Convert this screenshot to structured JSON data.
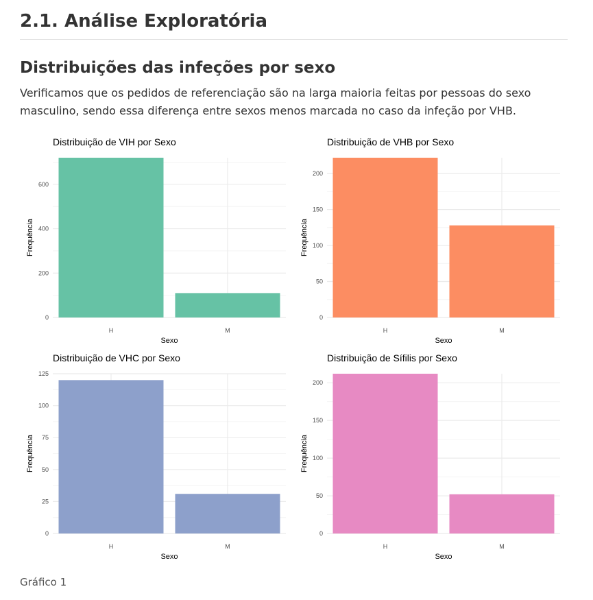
{
  "header": {
    "section_title": "2.1. Análise Exploratória",
    "subtitle": "Distribuições das infeções por sexo",
    "paragraph": "Verificamos que os pedidos de referenciação são na larga maioria feitas por pessoas do sexo masculino, sendo essa diferença entre sexos menos marcada no caso da infeção por VHB."
  },
  "caption": "Gráfico 1",
  "chart_data": [
    {
      "type": "bar",
      "title": "Distribuição de VIH por Sexo",
      "xlabel": "Sexo",
      "ylabel": "Frequência",
      "categories": [
        "H",
        "M"
      ],
      "values": [
        720,
        110
      ],
      "ylim": [
        0,
        720
      ],
      "yticks": [
        0,
        200,
        400,
        600
      ],
      "color": "#66c2a5",
      "grid": true
    },
    {
      "type": "bar",
      "title": "Distribuição de VHB por Sexo",
      "xlabel": "Sexo",
      "ylabel": "Frequência",
      "categories": [
        "H",
        "M"
      ],
      "values": [
        222,
        128
      ],
      "ylim": [
        0,
        222
      ],
      "yticks": [
        0,
        50,
        100,
        150,
        200
      ],
      "color": "#fc8d62",
      "grid": true
    },
    {
      "type": "bar",
      "title": "Distribuição de VHC por Sexo",
      "xlabel": "Sexo",
      "ylabel": "Frequência",
      "categories": [
        "H",
        "M"
      ],
      "values": [
        120,
        31
      ],
      "ylim": [
        0,
        125
      ],
      "yticks": [
        0,
        25,
        50,
        75,
        100,
        125
      ],
      "color": "#8da0cb",
      "grid": true
    },
    {
      "type": "bar",
      "title": "Distribuição de Sífilis por Sexo",
      "xlabel": "Sexo",
      "ylabel": "Frequência",
      "categories": [
        "H",
        "M"
      ],
      "values": [
        212,
        52
      ],
      "ylim": [
        0,
        212
      ],
      "yticks": [
        0,
        50,
        100,
        150,
        200
      ],
      "color": "#e78ac3",
      "grid": true
    }
  ]
}
